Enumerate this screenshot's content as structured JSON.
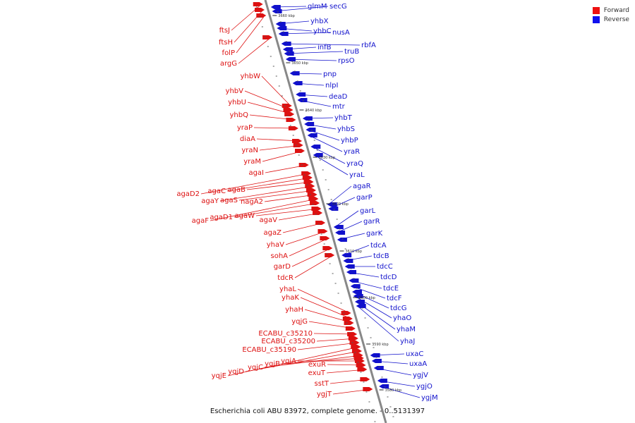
{
  "caption": "Escherichia coli ABU 83972, complete genome. - 0..5131397",
  "legend": [
    {
      "label": "Forward",
      "color": "#ee1111"
    },
    {
      "label": "Reverse",
      "color": "#1111ee"
    }
  ],
  "colors": {
    "forward": "#dd1111",
    "reverse": "#1111cc",
    "axis": "#888888"
  },
  "ticks": [
    {
      "label": "3660 kbp"
    },
    {
      "label": "3650 kbp"
    },
    {
      "label": "3640 kbp"
    },
    {
      "label": "3630 kbp"
    },
    {
      "label": "3620 kbp"
    },
    {
      "label": "3610 kbp"
    },
    {
      "label": "3600 kbp"
    },
    {
      "label": "3590 kbp"
    },
    {
      "label": "3580 kbp"
    }
  ],
  "forward_genes": [
    "ftsJ",
    "ftsH",
    "folP",
    "argG",
    "yhbW",
    "yhbV",
    "yhbU",
    "yhbQ",
    "yraP",
    "diaA",
    "yraN",
    "yraM",
    "agaI",
    "agaD2",
    "agaC",
    "agaB",
    "agaY",
    "agaS",
    "nagA2",
    "agaF",
    "agaD1",
    "agaW",
    "agaV",
    "agaZ",
    "yhaV",
    "sohA",
    "garD",
    "tdcR",
    "yhaL",
    "yhaK",
    "yhaH",
    "yqjG",
    "ECABU_c35210",
    "ECABU_c35200",
    "ECABU_c35190",
    "yqjE",
    "yqjD",
    "yqjC",
    "yqjB",
    "yqjA",
    "exuR",
    "exuT",
    "sstT",
    "ygjT"
  ],
  "reverse_genes": [
    "glmM",
    "secG",
    "yhbX",
    "yhbC",
    "nusA",
    "rbfA",
    "infB",
    "truB",
    "rpsO",
    "pnp",
    "nlpI",
    "deaD",
    "mtr",
    "yhbT",
    "yhbS",
    "yhbP",
    "yraR",
    "yraQ",
    "yraL",
    "agaR",
    "garP",
    "garL",
    "garR",
    "garK",
    "tdcA",
    "tdcB",
    "tdcC",
    "tdcD",
    "tdcE",
    "tdcF",
    "tdcG",
    "yhaO",
    "yhaM",
    "yhaJ",
    "uxaC",
    "uxaA",
    "ygjV",
    "ygjO",
    "ygjM"
  ]
}
